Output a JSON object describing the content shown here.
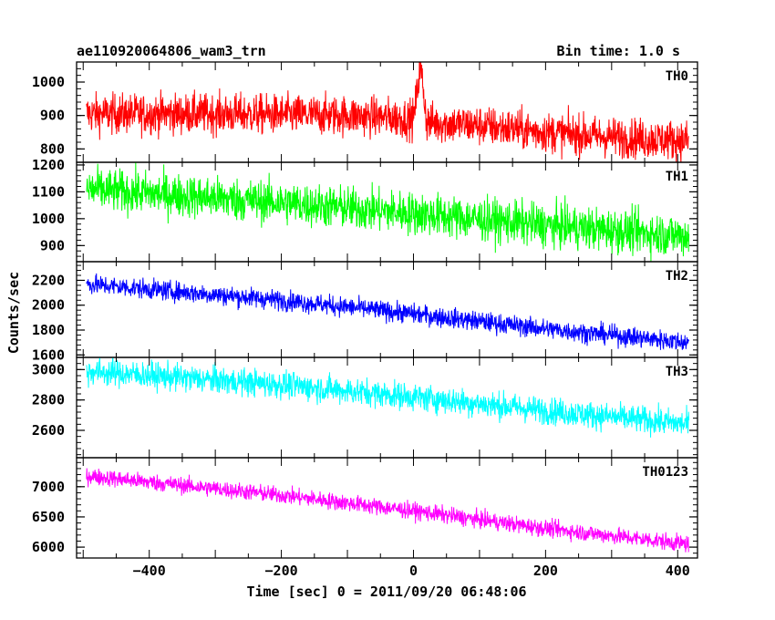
{
  "chart_data": {
    "type": "line",
    "title_left": "ae110920064806_wam3_trn",
    "title_right": "Bin time: 1.0 s",
    "xlabel": "Time [sec] 0 = 2011/09/20 06:48:06",
    "ylabel": "Counts/sec",
    "xlim": [
      -510,
      430
    ],
    "x_ticks": [
      -400,
      -200,
      0,
      200,
      400
    ],
    "x_start": -495,
    "x_end": 417,
    "panels": [
      {
        "label": "TH0",
        "color": "#ff0000",
        "ylim": [
          760,
          1060
        ],
        "y_ticks": [
          800,
          900,
          1000
        ],
        "trend_x": [
          -495,
          -300,
          -100,
          0,
          5,
          10,
          15,
          20,
          100,
          200,
          300,
          417
        ],
        "trend_y": [
          905,
          905,
          900,
          890,
          960,
          1050,
          980,
          880,
          870,
          850,
          835,
          825
        ],
        "noise": 30
      },
      {
        "label": "TH1",
        "color": "#00ff00",
        "ylim": [
          840,
          1210
        ],
        "y_ticks": [
          900,
          1000,
          1100,
          1200
        ],
        "trend_x": [
          -495,
          -200,
          0,
          200,
          417
        ],
        "trend_y": [
          1110,
          1060,
          1020,
          975,
          935
        ],
        "noise": 40
      },
      {
        "label": "TH2",
        "color": "#0000ff",
        "ylim": [
          1580,
          2350
        ],
        "y_ticks": [
          1600,
          1800,
          2000,
          2200
        ],
        "trend_x": [
          -495,
          -200,
          0,
          200,
          417
        ],
        "trend_y": [
          2170,
          2040,
          1930,
          1810,
          1700
        ],
        "noise": 40
      },
      {
        "label": "TH3",
        "color": "#00ffff",
        "ylim": [
          2420,
          3080
        ],
        "y_ticks": [
          2600,
          2800,
          3000
        ],
        "trend_x": [
          -495,
          -200,
          0,
          200,
          417
        ],
        "trend_y": [
          2990,
          2900,
          2820,
          2730,
          2640
        ],
        "noise": 45
      },
      {
        "label": "TH0123",
        "color": "#ff00ff",
        "ylim": [
          5820,
          7480
        ],
        "y_ticks": [
          6000,
          6500,
          7000
        ],
        "trend_x": [
          -495,
          -200,
          0,
          200,
          417
        ],
        "trend_y": [
          7180,
          6860,
          6600,
          6310,
          6050
        ],
        "noise": 70
      }
    ]
  }
}
